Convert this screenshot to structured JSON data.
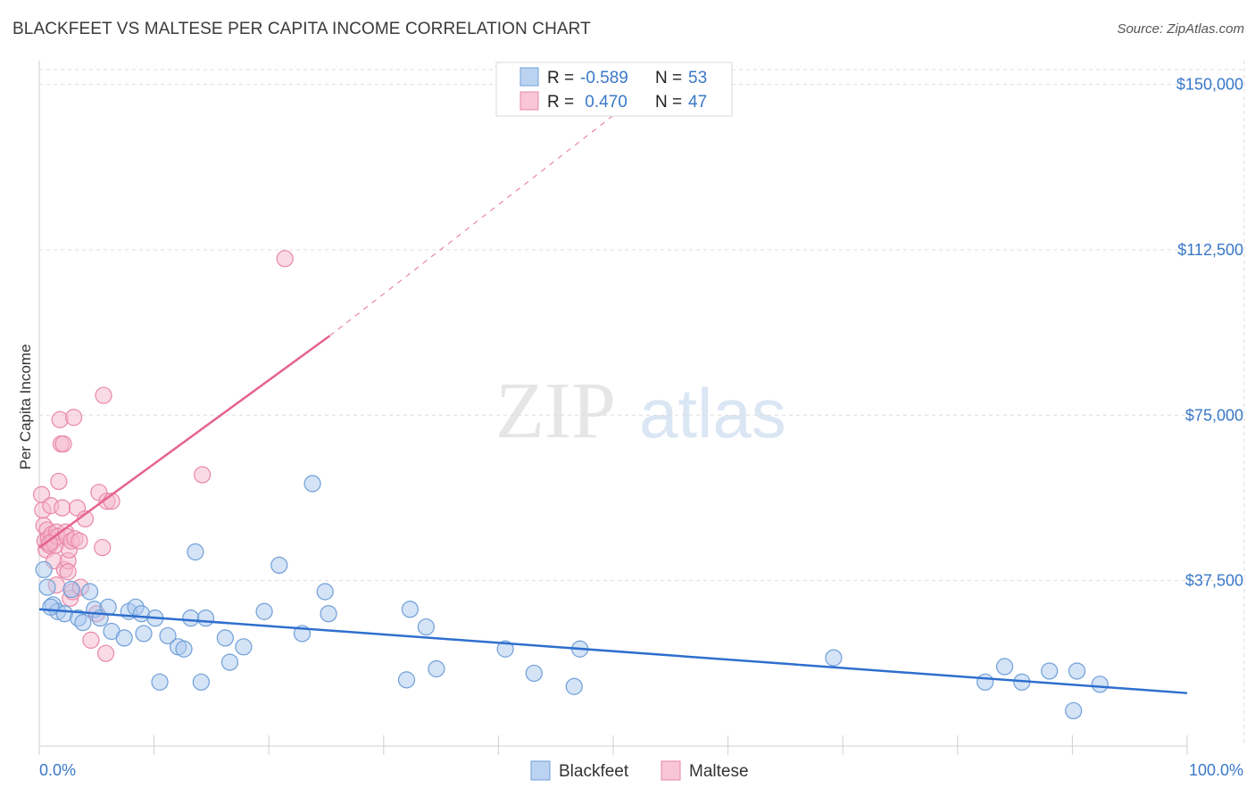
{
  "title": "BLACKFEET VS MALTESE PER CAPITA INCOME CORRELATION CHART",
  "source": "Source: ZipAtlas.com",
  "watermark": {
    "zip": "ZIP",
    "atlas": "atlas"
  },
  "colors": {
    "blackfeet_fill": "#aac8ee",
    "blackfeet_stroke": "#6f9fd8",
    "blackfeet_line": "#2e6fce",
    "maltese_fill": "#f6b8cc",
    "maltese_stroke": "#e987a7",
    "maltese_line": "#e5638f",
    "axis_label": "#3a78c9",
    "grid": "#dddddd"
  },
  "legend": {
    "rows": [
      {
        "r_label": "R =",
        "r_value": "-0.589",
        "n_label": "N =",
        "n_value": "53"
      },
      {
        "r_label": "R =",
        "r_value": " 0.470",
        "n_label": "N =",
        "n_value": "47"
      }
    ]
  },
  "chart_data": {
    "type": "scatter",
    "title": "BLACKFEET VS MALTESE PER CAPITA INCOME CORRELATION CHART",
    "xlabel": "",
    "ylabel": "Per Capita Income",
    "xlim": [
      0,
      100
    ],
    "ylim": [
      0,
      157000
    ],
    "x_tick_labels": [
      "0.0%",
      "100.0%"
    ],
    "y_ticks": [
      37500,
      75000,
      112500,
      150000
    ],
    "y_tick_labels": [
      "$37,500",
      "$75,000",
      "$112,500",
      "$150,000"
    ],
    "grid": true,
    "legend_position": "top-center",
    "series": [
      {
        "name": "Blackfeet",
        "R": -0.589,
        "N": 53,
        "trend": {
          "x0": 0,
          "y0": 31000,
          "x1": 100,
          "y1": 12000
        },
        "points": [
          [
            0.4,
            40000
          ],
          [
            0.7,
            36000
          ],
          [
            1.2,
            32000
          ],
          [
            1.6,
            30500
          ],
          [
            2.2,
            30000
          ],
          [
            2.8,
            35500
          ],
          [
            3.4,
            29000
          ],
          [
            3.8,
            28000
          ],
          [
            4.4,
            35000
          ],
          [
            4.8,
            31000
          ],
          [
            5.3,
            29000
          ],
          [
            6.0,
            31500
          ],
          [
            6.3,
            26000
          ],
          [
            7.4,
            24500
          ],
          [
            7.8,
            30500
          ],
          [
            8.4,
            31500
          ],
          [
            8.9,
            30000
          ],
          [
            9.1,
            25500
          ],
          [
            10.1,
            29000
          ],
          [
            10.5,
            14500
          ],
          [
            11.2,
            25000
          ],
          [
            12.1,
            22500
          ],
          [
            12.6,
            22000
          ],
          [
            13.2,
            29000
          ],
          [
            13.6,
            44000
          ],
          [
            14.1,
            14500
          ],
          [
            14.5,
            29000
          ],
          [
            16.2,
            24500
          ],
          [
            16.6,
            19000
          ],
          [
            17.8,
            22500
          ],
          [
            19.6,
            30500
          ],
          [
            20.9,
            41000
          ],
          [
            22.9,
            25500
          ],
          [
            23.8,
            59500
          ],
          [
            24.9,
            35000
          ],
          [
            25.2,
            30000
          ],
          [
            32.0,
            15000
          ],
          [
            32.3,
            31000
          ],
          [
            33.7,
            27000
          ],
          [
            34.6,
            17500
          ],
          [
            40.6,
            22000
          ],
          [
            43.1,
            16500
          ],
          [
            46.6,
            13500
          ],
          [
            47.1,
            22000
          ],
          [
            69.2,
            20000
          ],
          [
            82.4,
            14500
          ],
          [
            84.1,
            18000
          ],
          [
            85.6,
            14500
          ],
          [
            88.0,
            17000
          ],
          [
            90.1,
            8000
          ],
          [
            90.4,
            17000
          ],
          [
            92.4,
            14000
          ],
          [
            1.0,
            31500
          ]
        ]
      },
      {
        "name": "Maltese",
        "R": 0.47,
        "N": 47,
        "trend": {
          "x0": 0,
          "y0": 45000,
          "x1": 25.3,
          "y1": 93000
        },
        "trend_dashed": {
          "x0": 25.3,
          "y0": 93000,
          "x1": 52,
          "y1": 147000
        },
        "points": [
          [
            0.2,
            57000
          ],
          [
            0.3,
            53500
          ],
          [
            0.4,
            50000
          ],
          [
            0.5,
            46500
          ],
          [
            0.6,
            44500
          ],
          [
            0.7,
            49000
          ],
          [
            0.8,
            47000
          ],
          [
            0.9,
            45500
          ],
          [
            1.0,
            54500
          ],
          [
            1.1,
            48000
          ],
          [
            1.2,
            46500
          ],
          [
            1.3,
            42000
          ],
          [
            1.4,
            45500
          ],
          [
            1.5,
            48500
          ],
          [
            1.6,
            47500
          ],
          [
            1.7,
            60000
          ],
          [
            1.8,
            74000
          ],
          [
            1.9,
            68500
          ],
          [
            2.0,
            54000
          ],
          [
            2.1,
            68500
          ],
          [
            2.2,
            40000
          ],
          [
            2.3,
            48500
          ],
          [
            2.4,
            47500
          ],
          [
            2.5,
            42000
          ],
          [
            2.6,
            44500
          ],
          [
            2.7,
            33500
          ],
          [
            2.8,
            46500
          ],
          [
            2.9,
            35000
          ],
          [
            3.0,
            74500
          ],
          [
            3.1,
            47000
          ],
          [
            3.3,
            54000
          ],
          [
            3.6,
            36000
          ],
          [
            4.0,
            51500
          ],
          [
            4.5,
            24000
          ],
          [
            5.0,
            30000
          ],
          [
            5.2,
            57500
          ],
          [
            5.5,
            45000
          ],
          [
            5.6,
            79500
          ],
          [
            5.8,
            21000
          ],
          [
            5.9,
            55500
          ],
          [
            6.3,
            55500
          ],
          [
            14.2,
            61500
          ],
          [
            21.4,
            110500
          ],
          [
            1.5,
            36500
          ],
          [
            3.5,
            46500
          ],
          [
            2.5,
            39500
          ],
          [
            0.9,
            46000
          ]
        ]
      }
    ]
  },
  "bottom_legend": [
    {
      "name": "Blackfeet"
    },
    {
      "name": "Maltese"
    }
  ]
}
